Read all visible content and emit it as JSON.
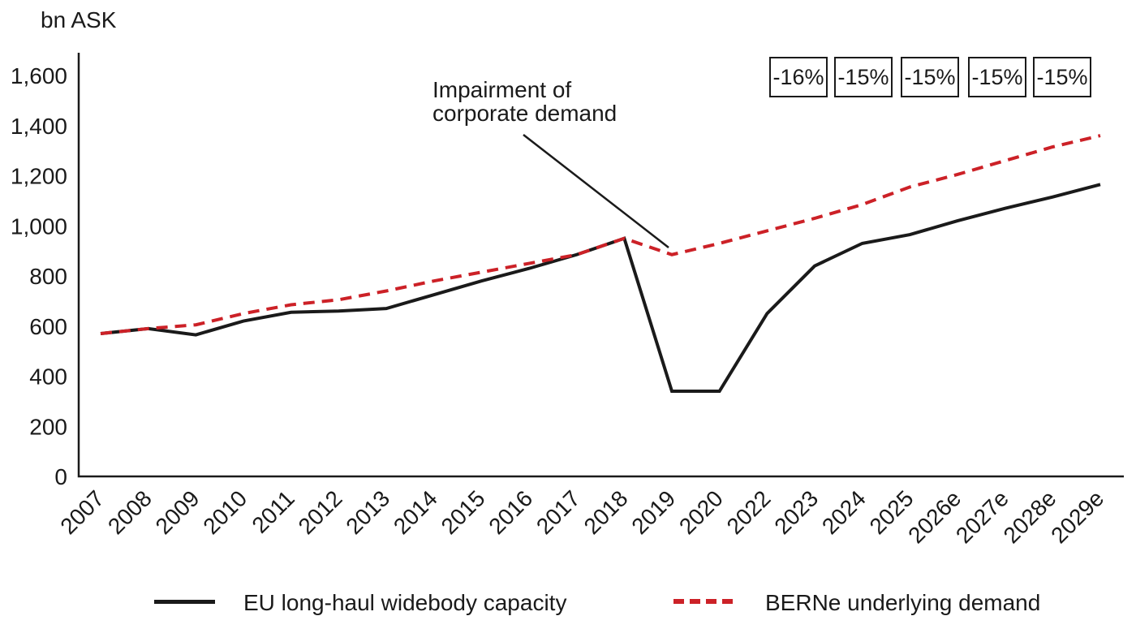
{
  "chart_data": {
    "type": "line",
    "title": "",
    "ylabel": "bn ASK",
    "xlabel": "",
    "grid": false,
    "legend_position": "bottom",
    "ylim": [
      0,
      1600
    ],
    "y_ticks": [
      0,
      200,
      400,
      600,
      800,
      1000,
      1200,
      1400,
      1600
    ],
    "y_tick_labels": [
      "0",
      "200",
      "400",
      "600",
      "800",
      "1,000",
      "1,200",
      "1,400",
      "1,600"
    ],
    "categories": [
      "2007",
      "2008",
      "2009",
      "2010",
      "2011",
      "2012",
      "2013",
      "2014",
      "2015",
      "2016",
      "2017",
      "2018",
      "2019",
      "2020",
      "2022",
      "2023",
      "2024",
      "2025",
      "2026e",
      "2027e",
      "2028e",
      "2029e"
    ],
    "series": [
      {
        "name": "EU long-haul widebody capacity",
        "color": "#1a1a1a",
        "style": "solid",
        "values": [
          570,
          590,
          565,
          620,
          655,
          660,
          670,
          725,
          780,
          830,
          885,
          950,
          340,
          340,
          650,
          840,
          930,
          965,
          1020,
          1070,
          1115,
          1165
        ]
      },
      {
        "name": "BERNe underlying demand",
        "color": "#cc2127",
        "style": "dashed",
        "values": [
          570,
          590,
          605,
          650,
          685,
          705,
          740,
          780,
          815,
          850,
          885,
          950,
          885,
          930,
          980,
          1030,
          1085,
          1155,
          1205,
          1260,
          1315,
          1360
        ]
      }
    ],
    "annotation": {
      "text": "Impairment of corporate demand",
      "points_to": "2019 demand dip"
    },
    "callout_boxes": [
      "-16%",
      "-15%",
      "-15%",
      "-15%",
      "-15%"
    ]
  }
}
